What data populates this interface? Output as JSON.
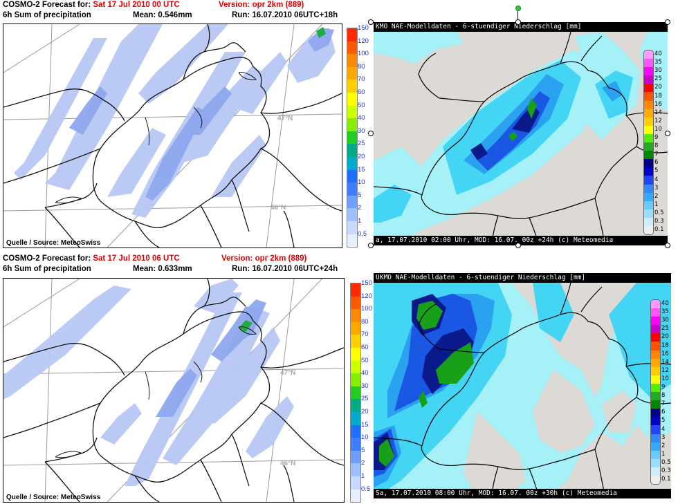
{
  "top_left": {
    "forecast_prefix": "COSMO-2 Forecast for: ",
    "forecast_date": "Sat 17 Jul 2010 00 UTC",
    "version": "Version: opr 2km (889)",
    "product": "6h Sum of precipitation",
    "mean": "Mean: 0.546mm",
    "run": "Run: 16.07.2010 06UTC+18h",
    "lat_47": "47°N",
    "lat_46": "46°N",
    "source": "Quelle / Source: MeteoSwiss"
  },
  "bottom_left": {
    "forecast_prefix": "COSMO-2 Forecast for: ",
    "forecast_date": "Sat 17 Jul 2010 06 UTC",
    "version": "Version: opr 2km (889)",
    "product": "6h Sum of precipitation",
    "mean": "Mean: 0.633mm",
    "run": "Run: 16.07.2010 06UTC+24h",
    "lat_47": "47°N",
    "lat_46": "46°N",
    "source": "Quelle / Source: MeteoSwiss"
  },
  "cosmo_legend": {
    "labels": [
      "150",
      "120",
      "100",
      "80",
      "70",
      "60",
      "50",
      "40",
      "30",
      "25",
      "20",
      "15",
      "10",
      "5",
      "2",
      "1",
      "0.5"
    ],
    "colors": [
      "#ff2a00",
      "#ff5a00",
      "#ff8c00",
      "#ffaa00",
      "#ffd000",
      "#ffff00",
      "#ccff00",
      "#88ee00",
      "#22cc22",
      "#00aa88",
      "#00aacc",
      "#1f6fff",
      "#3f7fff",
      "#6f9fff",
      "#9fbfff",
      "#c8d8ff",
      "#e6eeff"
    ]
  },
  "top_right": {
    "title": "KMO NAE-Modelldaten - 6-stuendiger Niederschlag [mm]",
    "footer": "a, 17.07.2010 02:00 Uhr, MOD: 16.07. 00z +24h (c) Meteomedia"
  },
  "bottom_right": {
    "title": "UKMO NAE-Modelldaten - 6-stuendiger Niederschlag [mm]",
    "footer": "Sa, 17.07.2010 08:00 Uhr, MOD: 16.07. 00z +30h (c) Meteomedia"
  },
  "ukmo_legend": {
    "labels": [
      "40",
      "35",
      "30",
      "25",
      "20",
      "18",
      "16",
      "14",
      "12",
      "10",
      "9",
      "8",
      "7",
      "6",
      "5",
      "4",
      "3",
      "2",
      "1",
      "0.5",
      "0.3",
      "0.1"
    ],
    "colors": [
      "#ff99ff",
      "#ff55ff",
      "#ff00ff",
      "#cc00cc",
      "#ff0000",
      "#ff5500",
      "#ff8800",
      "#ffaa00",
      "#ffcc00",
      "#ffff00",
      "#55ee00",
      "#22aa22",
      "#008800",
      "#000088",
      "#0000cc",
      "#2244ff",
      "#3388ff",
      "#33aaff",
      "#66ccff",
      "#99ddff",
      "#cceeff",
      "#eeeeee"
    ]
  },
  "colors": {
    "red_text": "#e00000",
    "cosmo_light_blue": "#b8c8f4",
    "cosmo_mid_blue": "#8ea8ee",
    "ukmo_background": "#ddd9d4",
    "ukmo_light": "#a6f0f8",
    "ukmo_cyan": "#44d4f4",
    "ukmo_blue": "#2aa2f0",
    "ukmo_deep": "#1a58e4",
    "ukmo_navy": "#0a1a8a",
    "ukmo_green": "#18a018"
  }
}
